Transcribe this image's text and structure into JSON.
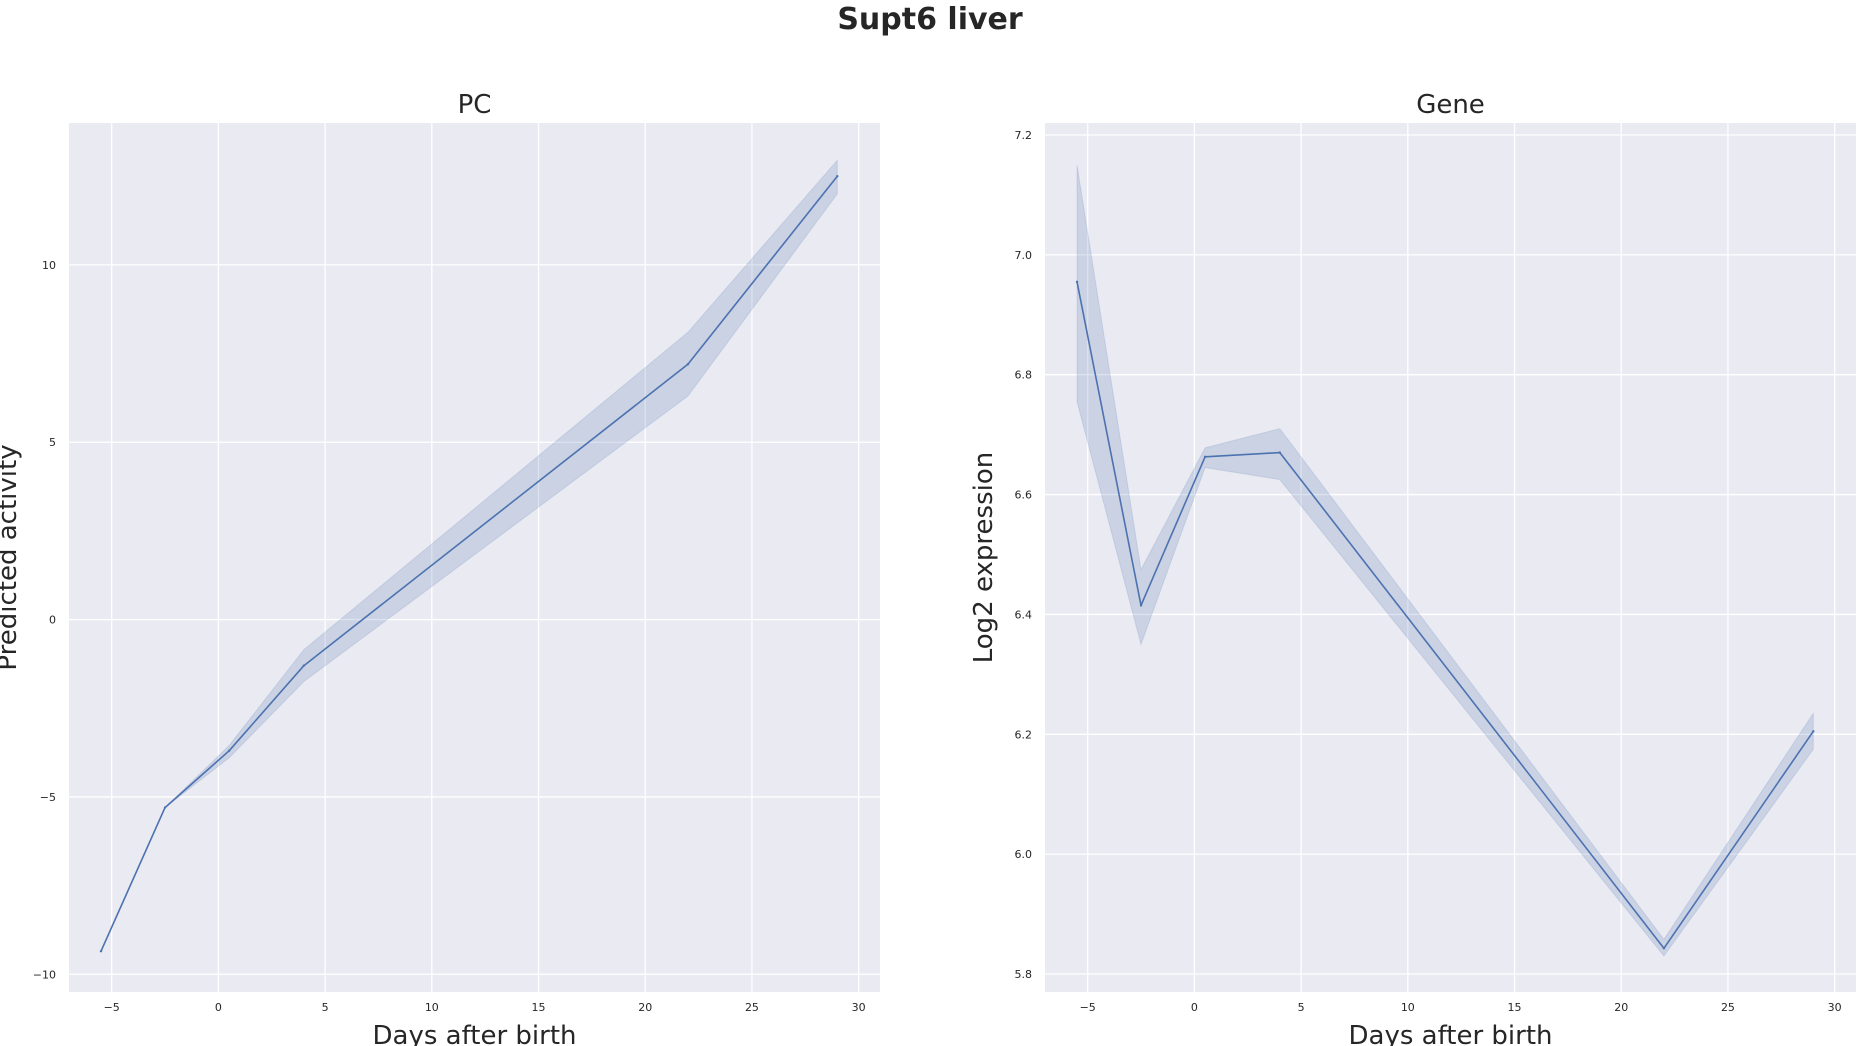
{
  "figure": {
    "title": "Supt6 liver"
  },
  "chart_data": [
    {
      "type": "line",
      "title": "PC",
      "xlabel": "Days after birth",
      "ylabel": "Predicted activity",
      "xlim": [
        -7,
        31
      ],
      "ylim": [
        -10.5,
        14
      ],
      "xticks": [
        -5,
        0,
        5,
        10,
        15,
        20,
        25,
        30
      ],
      "xtick_labels": [
        "−5",
        "0",
        "5",
        "10",
        "15",
        "20",
        "25",
        "30"
      ],
      "yticks": [
        -10,
        -5,
        0,
        5,
        10
      ],
      "ytick_labels": [
        "−10",
        "−5",
        "0",
        "5",
        "10"
      ],
      "grid": true,
      "colors": {
        "line": "#4c72b0",
        "band": "#4c72b0",
        "background": "#eaeaf2",
        "grid": "#ffffff"
      },
      "series": [
        {
          "x": [
            -5.5,
            -2.5,
            0.5,
            4,
            22,
            29
          ],
          "y": [
            -9.35,
            -5.3,
            -3.7,
            -1.3,
            7.2,
            12.5
          ],
          "ci_low": [
            -9.35,
            -5.3,
            -3.9,
            -1.75,
            6.3,
            12.0
          ],
          "ci_high": [
            -9.35,
            -5.3,
            -3.55,
            -0.85,
            8.1,
            12.95
          ]
        }
      ]
    },
    {
      "type": "line",
      "title": "Gene",
      "xlabel": "Days after birth",
      "ylabel": "Log2 expression",
      "xlim": [
        -7,
        31
      ],
      "ylim": [
        5.77,
        7.22
      ],
      "xticks": [
        -5,
        0,
        5,
        10,
        15,
        20,
        25,
        30
      ],
      "xtick_labels": [
        "−5",
        "0",
        "5",
        "10",
        "15",
        "20",
        "25",
        "30"
      ],
      "yticks": [
        5.8,
        6.0,
        6.2,
        6.4,
        6.6,
        6.8,
        7.0,
        7.2
      ],
      "ytick_labels": [
        "5.8",
        "6.0",
        "6.2",
        "6.4",
        "6.6",
        "6.8",
        "7.0",
        "7.2"
      ],
      "grid": true,
      "colors": {
        "line": "#4c72b0",
        "band": "#4c72b0",
        "background": "#eaeaf2",
        "grid": "#ffffff"
      },
      "series": [
        {
          "x": [
            -5.5,
            -2.5,
            0.5,
            4,
            22,
            29
          ],
          "y": [
            6.955,
            6.415,
            6.663,
            6.67,
            5.843,
            6.205
          ],
          "ci_low": [
            6.755,
            6.35,
            6.645,
            6.625,
            5.83,
            6.175
          ],
          "ci_high": [
            7.15,
            6.475,
            6.678,
            6.71,
            5.858,
            6.235
          ]
        }
      ]
    }
  ]
}
